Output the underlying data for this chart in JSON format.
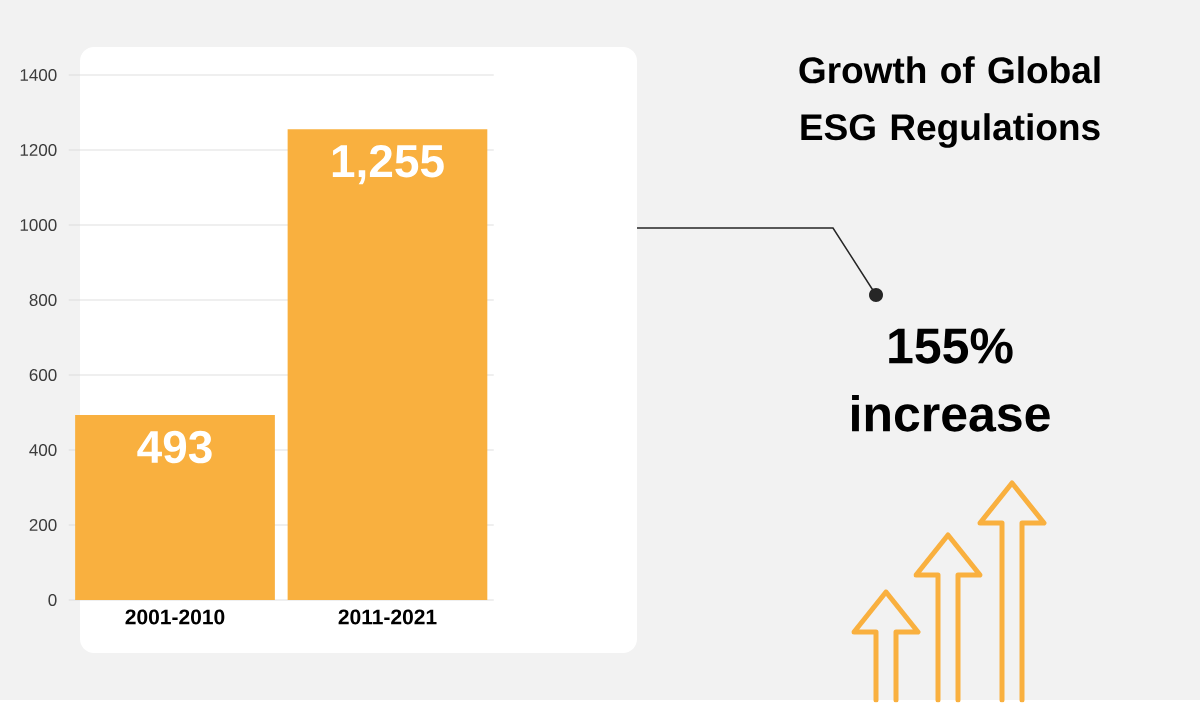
{
  "chart_data": {
    "type": "bar",
    "title": "Growth of Global ESG Regulations",
    "categories": [
      "2001-2010",
      "2011-2021"
    ],
    "values": [
      493,
      1255
    ],
    "value_labels": [
      "493",
      "1,255"
    ],
    "color": "#f9b03f",
    "ylim": [
      0,
      1400
    ],
    "yticks": [
      0,
      200,
      400,
      600,
      800,
      1000,
      1200,
      1400
    ],
    "grid": "y",
    "annotations": [
      "155% increase"
    ]
  }
}
